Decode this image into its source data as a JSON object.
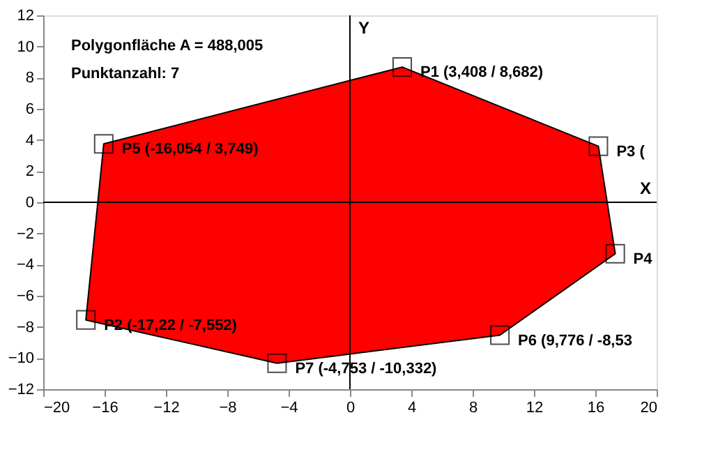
{
  "chart_data": {
    "type": "scatter",
    "xlim": [
      -20,
      20
    ],
    "ylim": [
      -12,
      12
    ],
    "xticks": [
      -20,
      -16,
      -12,
      -8,
      -4,
      0,
      4,
      8,
      12,
      16,
      20
    ],
    "yticks": [
      -12,
      -10,
      -8,
      -6,
      -4,
      -2,
      0,
      2,
      4,
      6,
      8,
      10,
      12
    ],
    "grid": false,
    "marker": "square",
    "annotations": [
      "Polygonfläche A = 488,005",
      "Punktanzahl: 7"
    ],
    "ref_lines": [
      {
        "axis": "x",
        "value": 0,
        "label": "Y"
      },
      {
        "axis": "y",
        "value": 0,
        "label": "X"
      }
    ],
    "series": [
      {
        "type": "area",
        "marker": "none",
        "color": "#ff0000",
        "x": [
          3.408,
          16.2,
          17.3,
          9.776,
          -4.753,
          -17.22,
          -16.054
        ],
        "values": [
          8.682,
          3.6,
          -3.3,
          -8.53,
          -10.332,
          -7.552,
          3.749
        ]
      },
      {
        "color": "#000000",
        "x": [
          3.408,
          -17.22,
          16.2,
          17.3,
          -16.054,
          9.776,
          -4.753
        ],
        "values": [
          8.682,
          -7.552,
          3.6,
          -3.3,
          3.749,
          -8.53,
          -10.332
        ],
        "value_labels": [
          "P1 (3,408 / 8,682)",
          "P2 (-17,22 / -7,552)",
          "P3 (",
          "P4",
          "P5 (-16,054 / 3,749)",
          "P6 (9,776 / -8,53",
          "P7 (-4,753 / -10,332)"
        ]
      }
    ]
  }
}
